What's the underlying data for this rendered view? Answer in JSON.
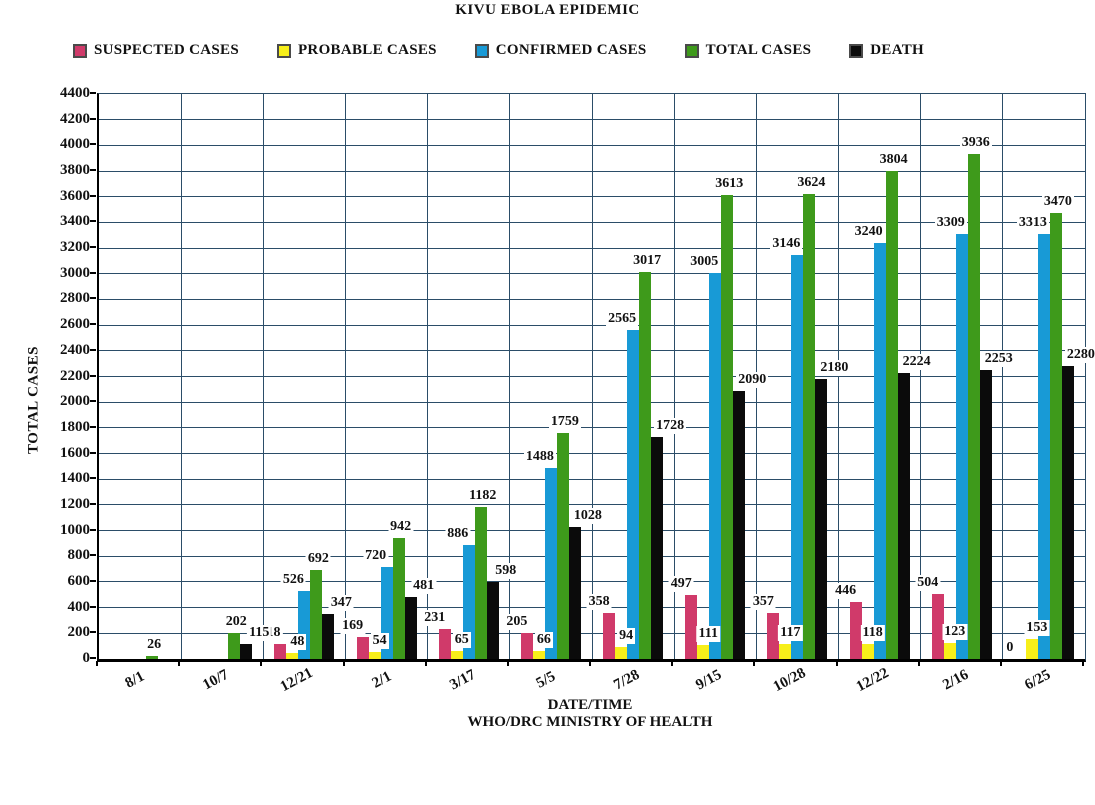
{
  "chart_data": {
    "type": "bar",
    "title": "KIVU EBOLA EPIDEMIC",
    "xlabel": "DATE/TIME",
    "xlabel_sub": "WHO/DRC MINISTRY OF HEALTH",
    "ylabel": "TOTAL CASES",
    "ylim": [
      0,
      4400
    ],
    "ytick_step": 200,
    "grid": true,
    "legend_position": "top",
    "categories": [
      "8/1",
      "10/7",
      "12/21",
      "2/1",
      "3/17",
      "5/5",
      "7/28",
      "9/15",
      "10/28",
      "12/22",
      "2/16",
      "6/25"
    ],
    "series": [
      {
        "name": "SUSPECTED CASES",
        "color": "#d03a6a",
        "values": [
          null,
          null,
          118,
          169,
          231,
          205,
          358,
          497,
          357,
          446,
          504,
          0
        ]
      },
      {
        "name": "PROBABLE CASES",
        "color": "#f7ef1a",
        "values": [
          null,
          null,
          48,
          54,
          65,
          66,
          94,
          111,
          117,
          118,
          123,
          153
        ]
      },
      {
        "name": "CONFIRMED CASES",
        "color": "#189ad6",
        "values": [
          null,
          null,
          526,
          720,
          886,
          1488,
          2565,
          3005,
          3146,
          3240,
          3309,
          3313
        ]
      },
      {
        "name": "TOTAL CASES",
        "color": "#3e9a1b",
        "values": [
          26,
          202,
          692,
          942,
          1182,
          1759,
          3017,
          3613,
          3624,
          3804,
          3936,
          3470
        ]
      },
      {
        "name": "DEATH",
        "color": "#0b0b0b",
        "values": [
          null,
          115,
          347,
          481,
          598,
          1028,
          1728,
          2090,
          2180,
          2224,
          2253,
          2280
        ]
      }
    ],
    "gridline_color": "#2b4d68"
  }
}
